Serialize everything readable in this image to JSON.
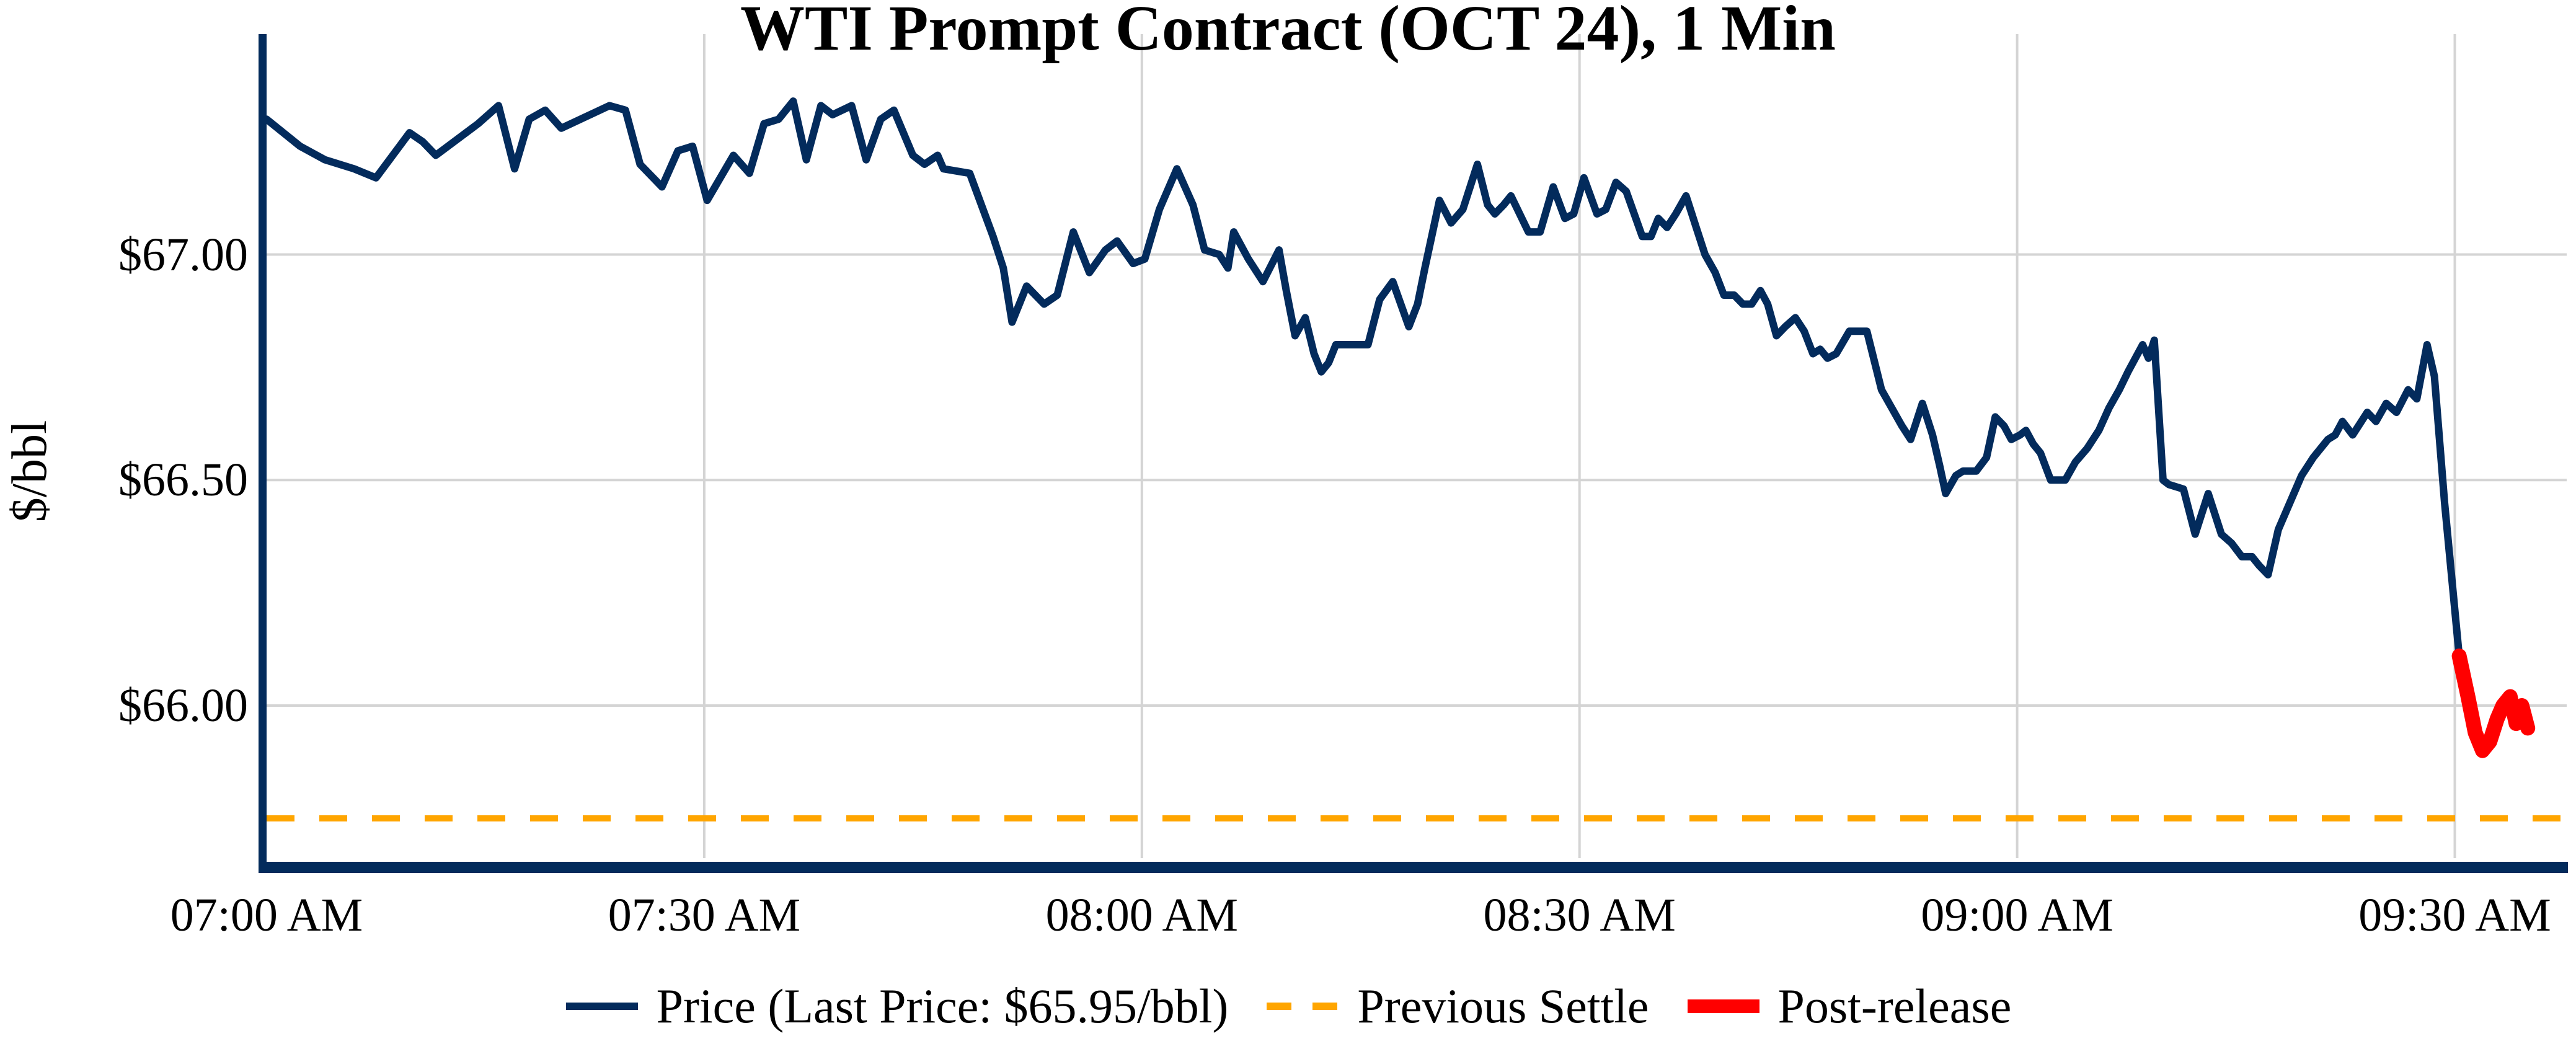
{
  "window": {
    "kind": "chart-figure",
    "background": "#ffffff"
  },
  "chart_data": {
    "type": "line",
    "title": "WTI Prompt Contract (OCT 24), 1 Min",
    "xlabel": "",
    "ylabel": "$/bbl",
    "grid": true,
    "legend_position": "bottom",
    "colors": {
      "price_line": "#032b5c",
      "previous_settle_line": "#ffa500",
      "post_release_line": "#ff0000",
      "gridline": "#d4d4d4",
      "axis_spine": "#032b5c",
      "text": "#000000"
    },
    "x_axis": {
      "unit": "minutes after 07:00 AM",
      "ticks": [
        {
          "minute": 0,
          "label": "07:00 AM"
        },
        {
          "minute": 30,
          "label": "07:30 AM"
        },
        {
          "minute": 60,
          "label": "08:00 AM"
        },
        {
          "minute": 90,
          "label": "08:30 AM"
        },
        {
          "minute": 120,
          "label": "09:00 AM"
        },
        {
          "minute": 150,
          "label": "09:30 AM"
        }
      ],
      "xlim_minutes": [
        0,
        157.4
      ]
    },
    "y_axis": {
      "unit": "$/bbl",
      "ticks": [
        {
          "value": 66.0,
          "label": "$66.00"
        },
        {
          "value": 66.5,
          "label": "$66.50"
        },
        {
          "value": 67.0,
          "label": "$67.00"
        }
      ],
      "ylim": [
        65.65,
        67.49
      ]
    },
    "previous_settle": {
      "name": "Previous Settle",
      "value": 65.75,
      "style": "dashed"
    },
    "last_price_label": "$65.95/bbl",
    "last_price": 65.95,
    "series": [
      {
        "id": "price",
        "name": "Price (Last Price: $65.95/bbl)",
        "style": "solid",
        "points": [
          [
            0,
            67.3
          ],
          [
            2.3,
            67.24
          ],
          [
            4,
            67.21
          ],
          [
            6,
            67.19
          ],
          [
            7.5,
            67.17
          ],
          [
            9.8,
            67.27
          ],
          [
            10.7,
            67.25
          ],
          [
            11.6,
            67.22
          ],
          [
            14.5,
            67.29
          ],
          [
            15.9,
            67.33
          ],
          [
            17,
            67.19
          ],
          [
            18,
            67.3
          ],
          [
            19.1,
            67.32
          ],
          [
            20.2,
            67.28
          ],
          [
            23.5,
            67.33
          ],
          [
            24.6,
            67.32
          ],
          [
            25.6,
            67.2
          ],
          [
            27.1,
            67.15
          ],
          [
            28.2,
            67.23
          ],
          [
            29.2,
            67.24
          ],
          [
            30.2,
            67.12
          ],
          [
            32,
            67.22
          ],
          [
            33.1,
            67.18
          ],
          [
            34.1,
            67.29
          ],
          [
            35.1,
            67.3
          ],
          [
            36.1,
            67.34
          ],
          [
            37,
            67.21
          ],
          [
            38,
            67.33
          ],
          [
            38.8,
            67.31
          ],
          [
            40.1,
            67.33
          ],
          [
            41.1,
            67.21
          ],
          [
            42.1,
            67.3
          ],
          [
            43,
            67.32
          ],
          [
            44.3,
            67.22
          ],
          [
            45.1,
            67.2
          ],
          [
            46,
            67.22
          ],
          [
            46.4,
            67.19
          ],
          [
            48.2,
            67.18
          ],
          [
            49.8,
            67.04
          ],
          [
            50.5,
            66.97
          ],
          [
            51.1,
            66.85
          ],
          [
            52.1,
            66.93
          ],
          [
            53.3,
            66.89
          ],
          [
            54.2,
            66.91
          ],
          [
            55.3,
            67.05
          ],
          [
            56.4,
            66.96
          ],
          [
            57.5,
            67.01
          ],
          [
            58.3,
            67.03
          ],
          [
            59.4,
            66.98
          ],
          [
            60.2,
            66.99
          ],
          [
            61.2,
            67.1
          ],
          [
            62.4,
            67.19
          ],
          [
            63.5,
            67.11
          ],
          [
            64.3,
            67.01
          ],
          [
            65.3,
            67.0
          ],
          [
            65.9,
            66.97
          ],
          [
            66.3,
            67.05
          ],
          [
            67.3,
            66.99
          ],
          [
            68.3,
            66.94
          ],
          [
            69.4,
            67.01
          ],
          [
            69.9,
            66.92
          ],
          [
            70.5,
            66.82
          ],
          [
            71.2,
            66.86
          ],
          [
            71.8,
            66.78
          ],
          [
            72.3,
            66.74
          ],
          [
            72.8,
            66.76
          ],
          [
            73.3,
            66.8
          ],
          [
            75.5,
            66.8
          ],
          [
            76.3,
            66.9
          ],
          [
            77.2,
            66.94
          ],
          [
            78.3,
            66.84
          ],
          [
            78.9,
            66.89
          ],
          [
            79.4,
            66.97
          ],
          [
            80.4,
            67.12
          ],
          [
            81.2,
            67.07
          ],
          [
            82,
            67.1
          ],
          [
            83,
            67.2
          ],
          [
            83.7,
            67.11
          ],
          [
            84.2,
            67.09
          ],
          [
            84.8,
            67.11
          ],
          [
            85.3,
            67.13
          ],
          [
            86.5,
            67.05
          ],
          [
            87.3,
            67.05
          ],
          [
            88.2,
            67.15
          ],
          [
            89,
            67.08
          ],
          [
            89.6,
            67.09
          ],
          [
            90.3,
            67.17
          ],
          [
            91.2,
            67.09
          ],
          [
            91.8,
            67.1
          ],
          [
            92.5,
            67.16
          ],
          [
            93.2,
            67.14
          ],
          [
            94.3,
            67.04
          ],
          [
            94.9,
            67.04
          ],
          [
            95.4,
            67.08
          ],
          [
            96,
            67.06
          ],
          [
            96.6,
            67.09
          ],
          [
            97.3,
            67.13
          ],
          [
            98,
            67.06
          ],
          [
            98.6,
            67.0
          ],
          [
            99.3,
            66.96
          ],
          [
            99.9,
            66.91
          ],
          [
            100.6,
            66.91
          ],
          [
            101.2,
            66.89
          ],
          [
            101.8,
            66.89
          ],
          [
            102.4,
            66.92
          ],
          [
            102.9,
            66.89
          ],
          [
            103.5,
            66.82
          ],
          [
            104.1,
            66.84
          ],
          [
            104.8,
            66.86
          ],
          [
            105.4,
            66.83
          ],
          [
            106,
            66.78
          ],
          [
            106.5,
            66.79
          ],
          [
            107,
            66.77
          ],
          [
            107.6,
            66.78
          ],
          [
            108.5,
            66.83
          ],
          [
            109.7,
            66.83
          ],
          [
            110.7,
            66.7
          ],
          [
            112.1,
            66.62
          ],
          [
            112.7,
            66.59
          ],
          [
            113.5,
            66.67
          ],
          [
            114.2,
            66.6
          ],
          [
            114.7,
            66.53
          ],
          [
            115.1,
            66.47
          ],
          [
            115.8,
            66.51
          ],
          [
            116.3,
            66.52
          ],
          [
            117.2,
            66.52
          ],
          [
            117.9,
            66.55
          ],
          [
            118.5,
            66.64
          ],
          [
            119.1,
            66.62
          ],
          [
            119.6,
            66.59
          ],
          [
            120.2,
            66.6
          ],
          [
            120.6,
            66.61
          ],
          [
            121.1,
            66.58
          ],
          [
            121.6,
            66.56
          ],
          [
            122.3,
            66.5
          ],
          [
            123.3,
            66.5
          ],
          [
            124,
            66.54
          ],
          [
            124.8,
            66.57
          ],
          [
            125.6,
            66.61
          ],
          [
            126.3,
            66.66
          ],
          [
            127,
            66.7
          ],
          [
            127.6,
            66.74
          ],
          [
            128.1,
            66.77
          ],
          [
            128.6,
            66.8
          ],
          [
            129,
            66.77
          ],
          [
            129.4,
            66.81
          ],
          [
            130,
            66.5
          ],
          [
            130.4,
            66.49
          ],
          [
            131.4,
            66.48
          ],
          [
            132.2,
            66.38
          ],
          [
            133.1,
            66.47
          ],
          [
            134,
            66.38
          ],
          [
            134.7,
            66.36
          ],
          [
            135.4,
            66.33
          ],
          [
            136.1,
            66.33
          ],
          [
            136.6,
            66.31
          ],
          [
            137.2,
            66.29
          ],
          [
            137.9,
            66.39
          ],
          [
            138.7,
            66.45
          ],
          [
            139.5,
            66.51
          ],
          [
            140.3,
            66.55
          ],
          [
            141.3,
            66.59
          ],
          [
            141.8,
            66.6
          ],
          [
            142.3,
            66.63
          ],
          [
            143,
            66.6
          ],
          [
            144,
            66.65
          ],
          [
            144.6,
            66.63
          ],
          [
            145.3,
            66.67
          ],
          [
            146,
            66.65
          ],
          [
            146.8,
            66.7
          ],
          [
            147.4,
            66.68
          ],
          [
            148.1,
            66.8
          ],
          [
            148.6,
            66.73
          ],
          [
            149.3,
            66.45
          ],
          [
            150.3,
            66.11
          ]
        ]
      },
      {
        "id": "post_release",
        "name": "Post-release",
        "style": "solid-thick",
        "points": [
          [
            150.3,
            66.11
          ],
          [
            150.9,
            66.02
          ],
          [
            151.4,
            65.94
          ],
          [
            151.9,
            65.9
          ],
          [
            152.4,
            65.92
          ],
          [
            152.9,
            65.97
          ],
          [
            153.3,
            66.0
          ],
          [
            153.8,
            66.02
          ],
          [
            154.2,
            65.96
          ],
          [
            154.6,
            66.0
          ],
          [
            155,
            65.95
          ]
        ]
      }
    ]
  },
  "legend": {
    "items": [
      {
        "label": "Price (Last Price: $65.95/bbl)",
        "swatch": "navy-solid-line",
        "series_id": "price"
      },
      {
        "label": "Previous Settle",
        "swatch": "orange-dashed-line",
        "series_id": "previous_settle"
      },
      {
        "label": "Post-release",
        "swatch": "red-thick-line",
        "series_id": "post_release"
      }
    ]
  }
}
